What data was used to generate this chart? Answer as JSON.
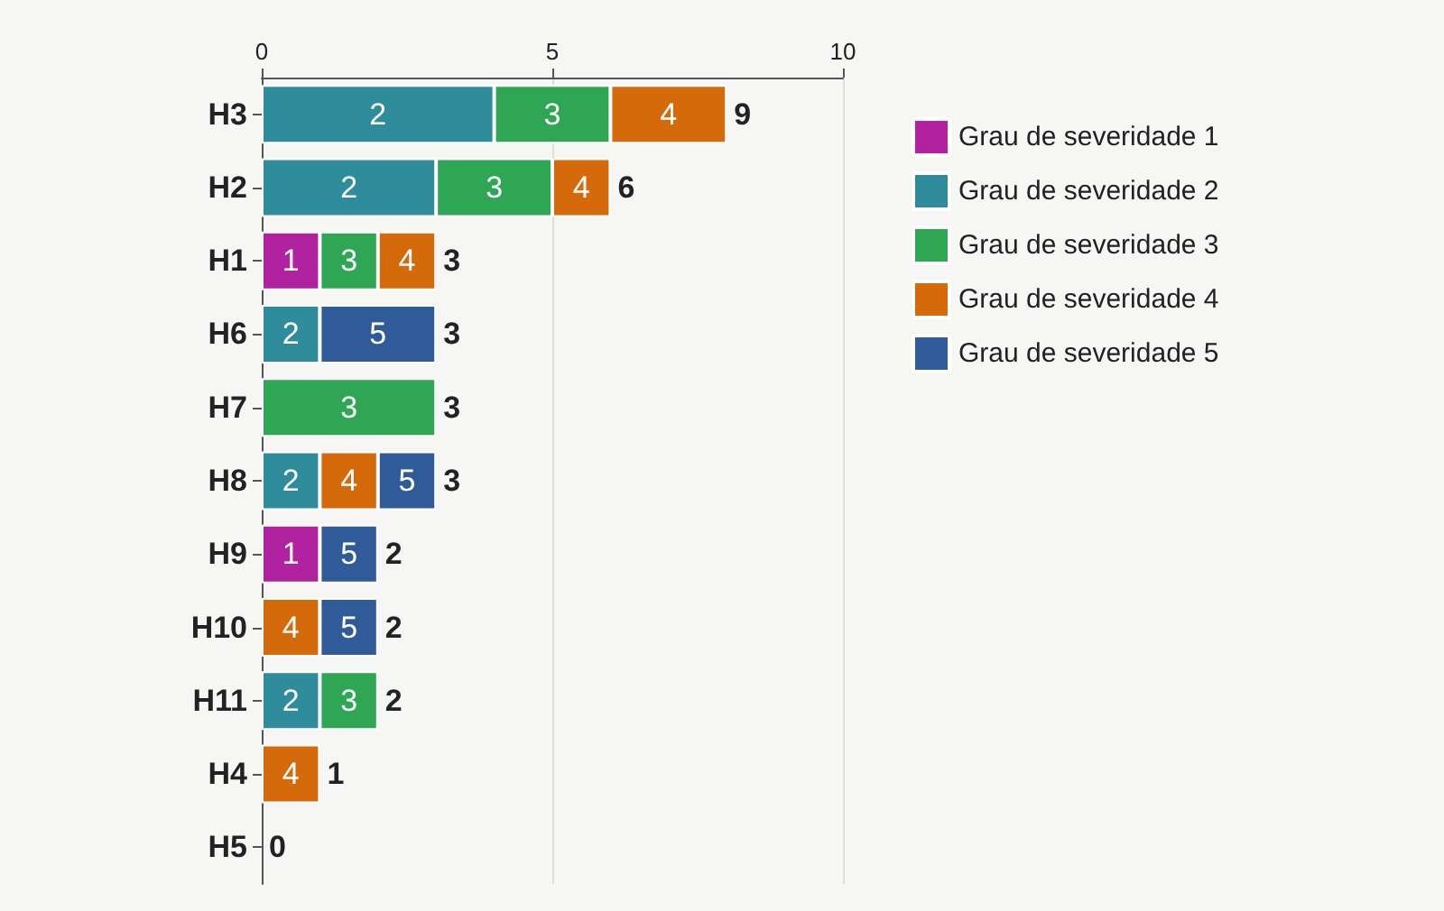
{
  "chart_data": {
    "type": "bar",
    "orientation": "horizontal",
    "stacked": true,
    "categories": [
      "H3",
      "H2",
      "H1",
      "H6",
      "H7",
      "H8",
      "H9",
      "H10",
      "H11",
      "H4",
      "H5"
    ],
    "series": [
      {
        "name": "Grau de severidade 1",
        "color": "#b0229f",
        "values": [
          null,
          null,
          1,
          null,
          null,
          null,
          1,
          null,
          null,
          null,
          null
        ]
      },
      {
        "name": "Grau de severidade 2",
        "color": "#2f8c9b",
        "values": [
          4,
          3,
          null,
          1,
          null,
          1,
          null,
          null,
          1,
          null,
          null
        ]
      },
      {
        "name": "Grau de severidade 3",
        "color": "#2ea653",
        "values": [
          2,
          2,
          1,
          null,
          3,
          null,
          null,
          null,
          1,
          null,
          null
        ]
      },
      {
        "name": "Grau de severidade 4",
        "color": "#d46a0a",
        "values": [
          2,
          1,
          1,
          null,
          null,
          1,
          null,
          1,
          null,
          1,
          null
        ]
      },
      {
        "name": "Grau de severidade 5",
        "color": "#2f5b98",
        "values": [
          null,
          null,
          null,
          2,
          null,
          1,
          1,
          1,
          null,
          null,
          null
        ]
      }
    ],
    "annotations": [
      {
        "text": "2",
        "x": 2,
        "y": "H3"
      },
      {
        "text": "3",
        "x": 5,
        "y": "H3"
      },
      {
        "text": "4",
        "x": 7,
        "y": "H3"
      },
      {
        "text": "2",
        "x": 1.5,
        "y": "H2"
      },
      {
        "text": "3",
        "x": 4,
        "y": "H2"
      },
      {
        "text": "4",
        "x": 5.5,
        "y": "H2"
      },
      {
        "text": "1",
        "x": 0.5,
        "y": "H1"
      },
      {
        "text": "3",
        "x": 1.5,
        "y": "H1"
      },
      {
        "text": "4",
        "x": 2.5,
        "y": "H1"
      },
      {
        "text": "2",
        "x": 0.5,
        "y": "H6"
      },
      {
        "text": "5",
        "x": 2,
        "y": "H6"
      },
      {
        "text": "3",
        "x": 1.5,
        "y": "H7"
      },
      {
        "text": "2",
        "x": 0.5,
        "y": "H8"
      },
      {
        "text": "4",
        "x": 1.5,
        "y": "H8"
      },
      {
        "text": "5",
        "x": 2.5,
        "y": "H8"
      },
      {
        "text": "1",
        "x": 0.5,
        "y": "H9"
      },
      {
        "text": "5",
        "x": 1.5,
        "y": "H9"
      },
      {
        "text": "4",
        "x": 0.5,
        "y": "H10"
      },
      {
        "text": "5",
        "x": 1.5,
        "y": "H10"
      },
      {
        "text": "2",
        "x": 0.5,
        "y": "H11"
      },
      {
        "text": "3",
        "x": 1.5,
        "y": "H11"
      },
      {
        "text": "4",
        "x": 0.5,
        "y": "H4"
      }
    ],
    "totals": [
      "9",
      "6",
      "3",
      "3",
      "3",
      "3",
      "2",
      "2",
      "2",
      "1",
      "0"
    ],
    "xlim": [
      0,
      10
    ],
    "xticks": [
      0,
      5,
      10
    ],
    "grid": "x",
    "legend": "top right"
  }
}
